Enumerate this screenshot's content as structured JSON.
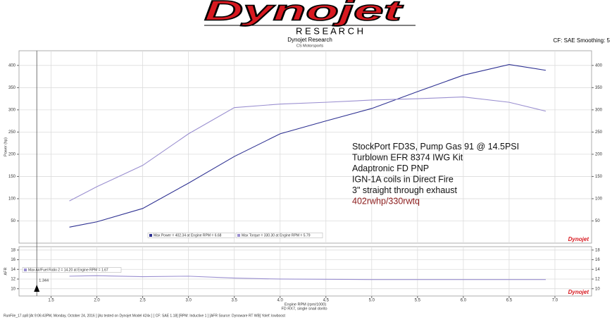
{
  "header": {
    "logo": "Dynojet",
    "subtitle": "R E S E A R C H",
    "title": "Dynojet Research",
    "shop": "CS Motorsports",
    "settings": "CF: SAE Smoothing: 5"
  },
  "footer": {
    "axis_note": "FD RX7, single snail dorito",
    "run_info": "RunFile_17.sp8 [At 9:06:43PM, Monday, October 24, 2016 ] [As tested on Dynojet Model 424x ] [ CF: SAE 1.18] [RPM: Inductive 1 ] [AFR Source: Dynoware RT WB] Yolef: lowboost"
  },
  "chart_data": [
    {
      "type": "line",
      "ylabel": "Power (hp)",
      "x": [
        1.7,
        2.0,
        2.5,
        3.0,
        3.5,
        4.0,
        4.5,
        5.0,
        5.5,
        6.0,
        6.5,
        6.9
      ],
      "series": [
        {
          "name": "Max Power = 402.34 at Engine RPM = 6.68",
          "color": "#2e3192",
          "values": [
            36,
            48,
            78,
            135,
            195,
            246,
            275,
            303,
            341,
            378,
            402,
            389
          ]
        },
        {
          "name": "Max Torque = 330.30 at Engine RPM = 5.79",
          "color": "#9a8fd0",
          "values": [
            95,
            127,
            175,
            246,
            305,
            313,
            317,
            322,
            325,
            329,
            317,
            297
          ]
        }
      ],
      "xlim": [
        1.15,
        7.4
      ],
      "ylim": [
        0,
        433
      ],
      "yticks": [
        50,
        100,
        150,
        200,
        250,
        300,
        350,
        400
      ],
      "grid": true,
      "annotations": [
        "StockPort FD3S, Pump Gas 91 @ 14.5PSI",
        "Turblown EFR 8374 IWG Kit",
        "Adaptronic FD PNP",
        "IGN-1A coils in Direct Fire",
        "3\" straight through exhaust",
        "402rwhp/330rwtq"
      ]
    },
    {
      "type": "line",
      "ylabel": "AFR",
      "xlabel": "Engine RPM (rpm/1000)",
      "x": [
        1.7,
        2.0,
        2.5,
        3.0,
        3.5,
        4.0,
        5.0,
        6.0,
        6.9
      ],
      "series": [
        {
          "name": "Max Air/Fuel Ratio 2 = 14.20 at Engine RPM = 1.67",
          "color": "#9a8fd0",
          "values": [
            12.6,
            12.7,
            12.5,
            12.6,
            12.2,
            12.0,
            11.9,
            11.9,
            11.9
          ]
        }
      ],
      "cursor": 1.344,
      "xlim": [
        1.15,
        7.4
      ],
      "ylim": [
        8.5,
        18.7
      ],
      "yticks": [
        10,
        12,
        14,
        16,
        18
      ],
      "xticks": [
        {
          "value": 1.5,
          "label": "1.5"
        },
        {
          "value": 2,
          "label": "2.0"
        },
        {
          "value": 2.5,
          "label": "2.5"
        },
        {
          "value": 3,
          "label": "3.0"
        },
        {
          "value": 3.5,
          "label": "3.5"
        },
        {
          "value": 4,
          "label": "4.0"
        },
        {
          "value": 4.5,
          "label": "4.5"
        },
        {
          "value": 5,
          "label": "5.0"
        },
        {
          "value": 5.5,
          "label": "5.5"
        },
        {
          "value": 6,
          "label": "6.0"
        },
        {
          "value": 6.5,
          "label": "6.5"
        },
        {
          "value": 7,
          "label": "7.0"
        }
      ],
      "grid": true
    }
  ]
}
